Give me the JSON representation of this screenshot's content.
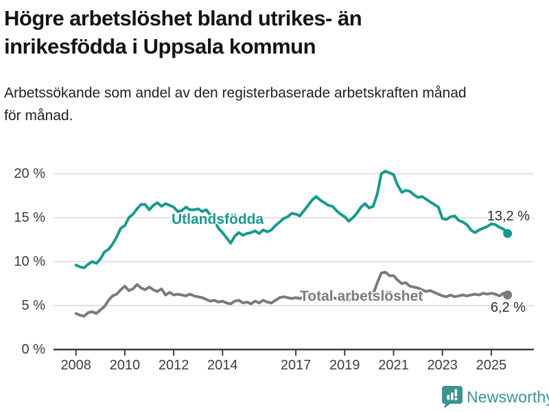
{
  "header": {
    "title_line1": "Högre arbetslöshet bland utrikes- än",
    "title_line2": "inrikesfödda i Uppsala kommun",
    "subtitle_line1": "Arbetssökande som andel av den registerbaserade arbetskraften månad",
    "subtitle_line2": "för månad."
  },
  "chart_data": {
    "type": "line",
    "title": "Högre arbetslöshet bland utrikes- än inrikesfödda i Uppsala kommun",
    "subtitle": "Arbetssökande som andel av den registerbaserade arbetskraften månad för månad.",
    "xlabel": "",
    "ylabel": "",
    "x_start": 2008,
    "x_step_years": 0.166667,
    "x_end_approx": 2025.75,
    "ylim": [
      0,
      21.5
    ],
    "grid": true,
    "y_ticks": [
      {
        "value": 0,
        "label": "0 %"
      },
      {
        "value": 5,
        "label": "5 %"
      },
      {
        "value": 10,
        "label": "10 %"
      },
      {
        "value": 15,
        "label": "15 %"
      },
      {
        "value": 20,
        "label": "20 %"
      }
    ],
    "x_ticks": [
      {
        "year": 2008,
        "label": "2008"
      },
      {
        "year": 2010,
        "label": "2010"
      },
      {
        "year": 2012,
        "label": "2012"
      },
      {
        "year": 2014,
        "label": "2014"
      },
      {
        "year": 2017,
        "label": "2017"
      },
      {
        "year": 2019,
        "label": "2019"
      },
      {
        "year": 2021,
        "label": "2021"
      },
      {
        "year": 2023,
        "label": "2023"
      },
      {
        "year": 2025,
        "label": "2025"
      }
    ],
    "series": [
      {
        "name": "Utlandsfödda",
        "color": "#169a8d",
        "end_label": "13,2 %",
        "end_value": 13.2,
        "values": [
          9.6,
          9.4,
          9.3,
          9.7,
          10.0,
          9.8,
          10.3,
          11.1,
          11.4,
          12.0,
          12.8,
          13.8,
          14.1,
          15.0,
          15.4,
          16.0,
          16.5,
          16.5,
          15.9,
          16.4,
          16.7,
          16.3,
          16.6,
          16.4,
          16.2,
          15.7,
          15.8,
          16.2,
          15.9,
          15.9,
          16.0,
          15.7,
          15.9,
          15.3,
          14.6,
          13.8,
          13.3,
          12.7,
          12.1,
          12.9,
          13.3,
          13.0,
          13.2,
          13.3,
          13.5,
          13.2,
          13.6,
          13.4,
          13.6,
          14.1,
          14.5,
          14.9,
          15.1,
          15.5,
          15.4,
          15.2,
          15.8,
          16.4,
          17.0,
          17.4,
          17.0,
          16.7,
          16.4,
          16.3,
          15.8,
          15.4,
          15.1,
          14.6,
          15.0,
          15.5,
          16.2,
          16.6,
          16.1,
          16.3,
          17.7,
          20.0,
          20.3,
          20.1,
          19.9,
          18.7,
          17.9,
          18.1,
          18.0,
          17.6,
          17.3,
          17.4,
          17.1,
          16.8,
          16.5,
          16.2,
          14.9,
          14.8,
          15.1,
          15.2,
          14.7,
          14.5,
          14.2,
          13.6,
          13.3,
          13.6,
          13.8,
          14.0,
          14.3,
          14.2,
          13.9,
          13.7,
          13.2
        ]
      },
      {
        "name": "Total arbetslöshet",
        "color": "#7a7980",
        "end_label": "6,2 %",
        "end_value": 6.2,
        "values": [
          4.1,
          3.9,
          3.8,
          4.2,
          4.3,
          4.1,
          4.5,
          4.9,
          5.6,
          6.1,
          6.3,
          6.8,
          7.2,
          6.7,
          6.9,
          7.4,
          7.0,
          6.8,
          7.1,
          6.8,
          6.6,
          6.9,
          6.2,
          6.5,
          6.2,
          6.3,
          6.2,
          6.1,
          6.3,
          6.1,
          6.0,
          5.9,
          5.7,
          5.5,
          5.6,
          5.4,
          5.5,
          5.3,
          5.2,
          5.5,
          5.6,
          5.3,
          5.4,
          5.2,
          5.5,
          5.3,
          5.6,
          5.4,
          5.3,
          5.6,
          5.9,
          6.0,
          5.9,
          5.8,
          5.9,
          5.8,
          6.0,
          6.1,
          5.9,
          5.8,
          6.0,
          5.9,
          5.7,
          5.9,
          5.8,
          5.7,
          5.8,
          5.6,
          5.8,
          5.9,
          6.0,
          5.9,
          5.9,
          6.3,
          7.6,
          8.7,
          8.8,
          8.4,
          8.4,
          7.9,
          7.5,
          7.6,
          7.2,
          7.1,
          7.0,
          6.8,
          6.6,
          6.7,
          6.5,
          6.3,
          6.1,
          6.0,
          6.2,
          6.0,
          6.1,
          6.2,
          6.1,
          6.2,
          6.3,
          6.2,
          6.4,
          6.3,
          6.4,
          6.3,
          6.1,
          6.4,
          6.2
        ]
      }
    ],
    "colors": {
      "grid": "#d9d9d9",
      "axis": "#3d3d3d",
      "tick_text": "#3c3c3c"
    }
  },
  "footer": {
    "brand": "Newsworthy",
    "brand_color": "#3a938e"
  }
}
